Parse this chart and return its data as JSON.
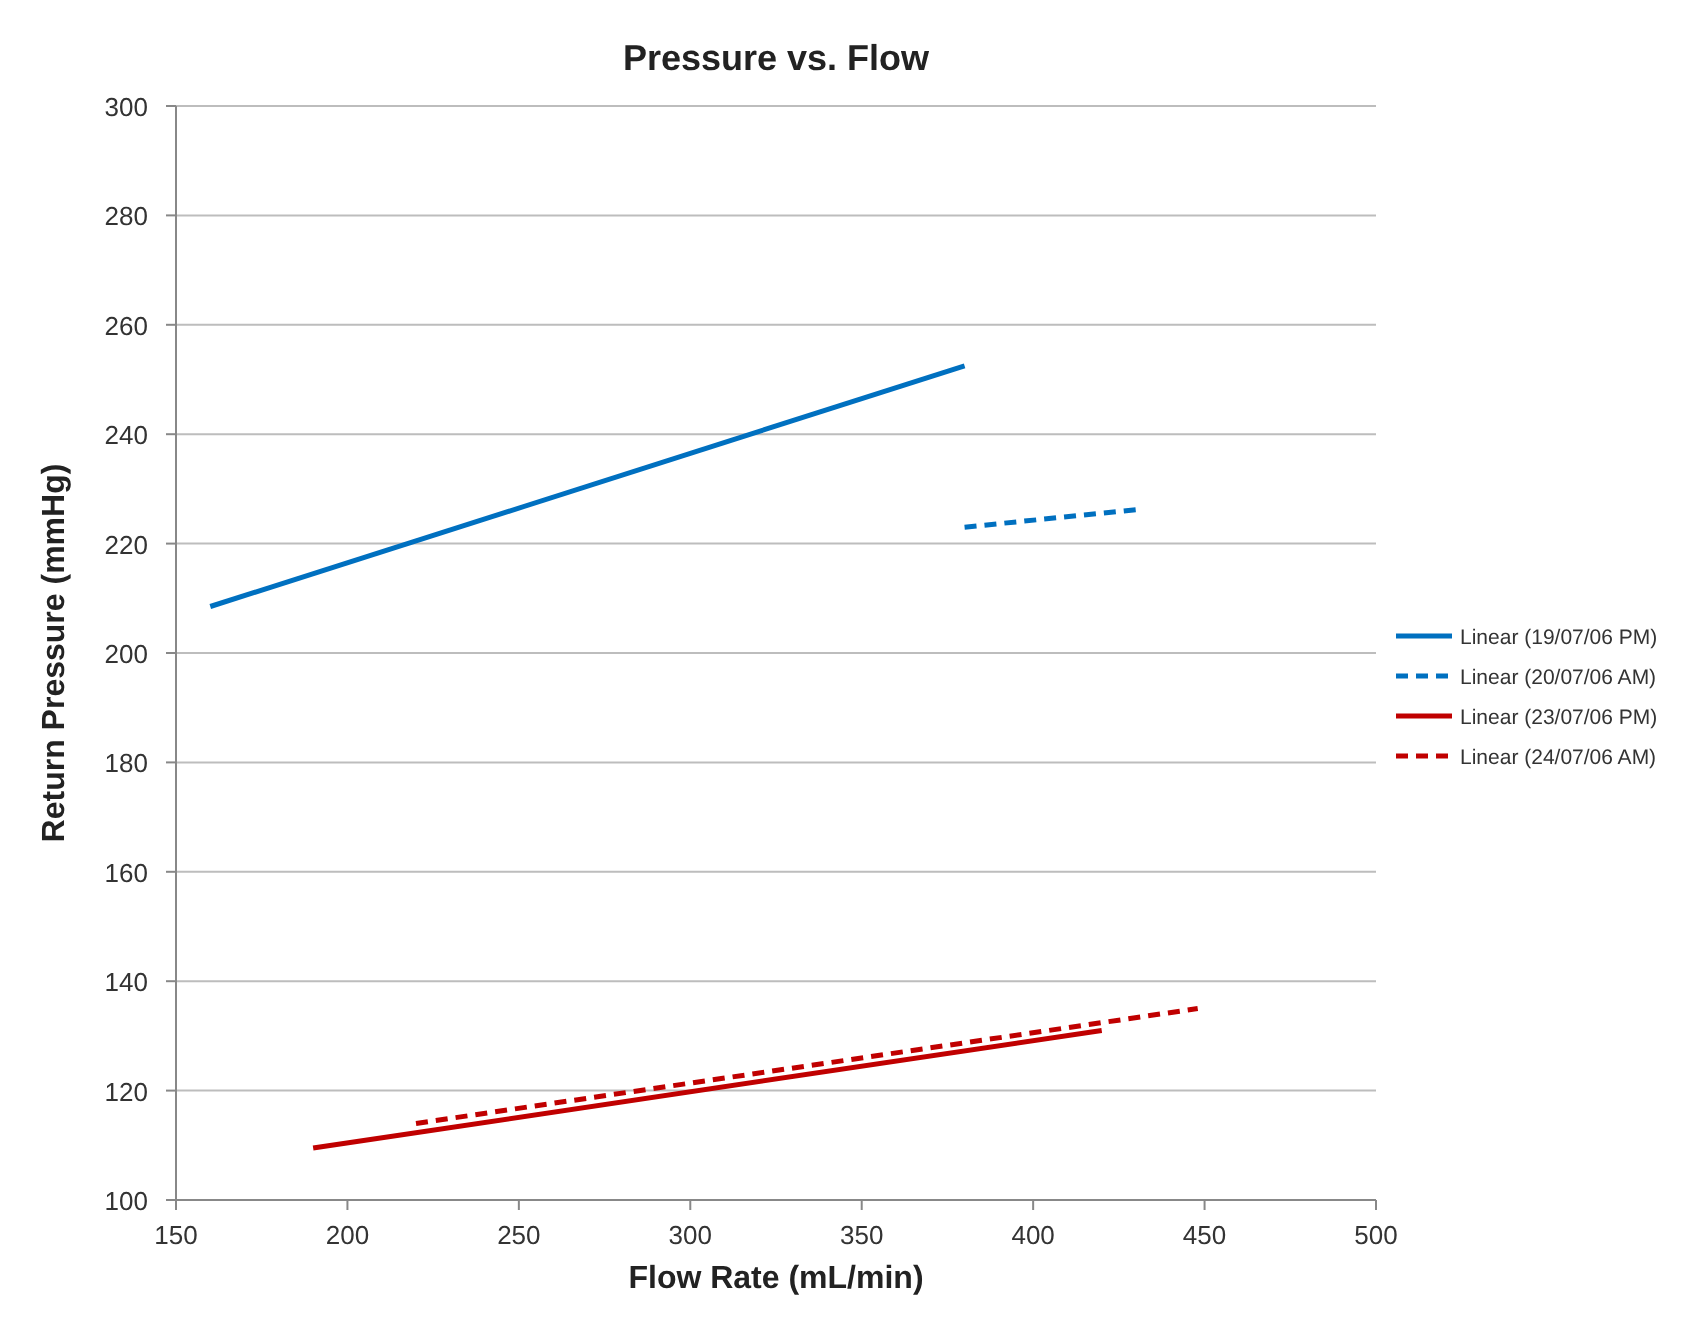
{
  "chart_data": {
    "type": "line",
    "title": "Pressure vs. Flow",
    "xlabel": "Flow Rate (mL/min)",
    "ylabel": "Return Pressure (mmHg)",
    "xlim": [
      150,
      500
    ],
    "xticks": [
      150,
      200,
      250,
      300,
      350,
      400,
      450,
      500
    ],
    "ylim": [
      100,
      300
    ],
    "yticks": [
      100,
      120,
      140,
      160,
      180,
      200,
      220,
      240,
      260,
      280,
      300
    ],
    "grid": "y",
    "legend": "right",
    "marker": "none",
    "series": [
      {
        "name": "Linear (19/07/06 PM)",
        "color": "#0070c0",
        "x": [
          160,
          380
        ],
        "values": [
          208.5,
          252.5
        ],
        "line_style": "solid"
      },
      {
        "name": "Linear (20/07/06 AM)",
        "color": "#0070c0",
        "x": [
          380,
          430
        ],
        "values": [
          223,
          226.2
        ],
        "line_style": "dashed"
      },
      {
        "name": "Linear (23/07/06 PM)",
        "color": "#c00000",
        "x": [
          190,
          420
        ],
        "values": [
          109.5,
          131
        ],
        "line_style": "solid"
      },
      {
        "name": "Linear (24/07/06 AM)",
        "color": "#c00000",
        "x": [
          220,
          448
        ],
        "values": [
          114,
          135
        ],
        "line_style": "dashed"
      }
    ]
  }
}
